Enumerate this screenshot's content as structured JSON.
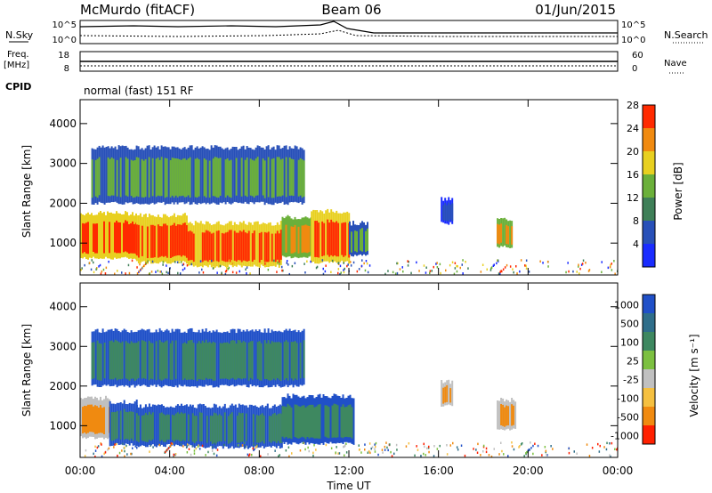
{
  "header": {
    "station": "McMurdo (fitACF)",
    "beam": "Beam 06",
    "date": "01/Jun/2015"
  },
  "top_panels": {
    "nsky_label": "N.Sky",
    "nsky_ticks": [
      "10^5",
      "10^0"
    ],
    "nsearch_label": "N.Search",
    "nsearch_ticks": [
      "10^5",
      "10^0"
    ],
    "freq_label": "Freq.",
    "freq_unit": "[MHz]",
    "freq_ticks": [
      "18",
      "8"
    ],
    "nave_label": "Nave",
    "nave_ticks": [
      "60",
      "0"
    ],
    "cpid_label": "CPID",
    "cpid_text": "normal (fast) 151 RF"
  },
  "chart_data": [
    {
      "type": "heatmap",
      "name": "power",
      "ylabel": "Slant Range [km]",
      "ylim": [
        200,
        4600
      ],
      "yticks": [
        "1000",
        "2000",
        "3000",
        "4000"
      ],
      "xlim": [
        0,
        24
      ],
      "colorbar_label": "Power [dB]",
      "colorbar_ticks": [
        "4",
        "8",
        "12",
        "16",
        "20",
        "24",
        "28"
      ],
      "colorbar_colors": [
        "#1a2cff",
        "#2850b8",
        "#3f7f58",
        "#6bb03a",
        "#e8d020",
        "#f08a10",
        "#ff2a00"
      ],
      "regions": [
        {
          "t0": 0.0,
          "t1": 2.5,
          "r0": 620,
          "r1": 1750,
          "level": 6
        },
        {
          "t0": 2.5,
          "t1": 4.8,
          "r0": 520,
          "r1": 1700,
          "level": 6
        },
        {
          "t0": 4.8,
          "t1": 9.0,
          "r0": 420,
          "r1": 1500,
          "level": 6
        },
        {
          "t0": 9.0,
          "t1": 10.3,
          "r0": 650,
          "r1": 1650,
          "level": 5
        },
        {
          "t0": 10.3,
          "t1": 12.0,
          "r0": 520,
          "r1": 1800,
          "level": 6
        },
        {
          "t0": 12.0,
          "t1": 12.8,
          "r0": 700,
          "r1": 1500,
          "level": 3
        },
        {
          "t0": 16.1,
          "t1": 16.6,
          "r0": 1500,
          "r1": 2100,
          "level": 1
        },
        {
          "t0": 18.6,
          "t1": 19.3,
          "r0": 900,
          "r1": 1600,
          "level": 5
        },
        {
          "t0": 0.5,
          "t1": 10.0,
          "r0": 2000,
          "r1": 3400,
          "level": 3
        }
      ]
    },
    {
      "type": "heatmap",
      "name": "velocity",
      "ylabel": "Slant Range [km]",
      "ylim": [
        200,
        4600
      ],
      "yticks": [
        "1000",
        "2000",
        "3000",
        "4000"
      ],
      "xlim": [
        0,
        24
      ],
      "xlabel": "Time UT",
      "xticks": [
        "00:00",
        "04:00",
        "08:00",
        "12:00",
        "16:00",
        "20:00",
        "00:00"
      ],
      "colorbar_label": "Velocity [m s⁻¹]",
      "colorbar_ticks": [
        "1000",
        "500",
        "100",
        "25",
        "-25",
        "-100",
        "-500",
        "-1000"
      ],
      "colorbar_colors": [
        "#2050c8",
        "#2f6e8a",
        "#3e8860",
        "#7cc040",
        "#c0c0c0",
        "#f5c040",
        "#f08a10",
        "#ff2000"
      ],
      "regions": [
        {
          "t0": 0.0,
          "t1": 1.3,
          "r0": 700,
          "r1": 1700,
          "level": 6
        },
        {
          "t0": 1.3,
          "t1": 2.5,
          "r0": 520,
          "r1": 1600,
          "level": 2
        },
        {
          "t0": 2.5,
          "t1": 5.0,
          "r0": 500,
          "r1": 1500,
          "level": 2
        },
        {
          "t0": 5.0,
          "t1": 9.0,
          "r0": 450,
          "r1": 1500,
          "level": 2
        },
        {
          "t0": 9.0,
          "t1": 12.2,
          "r0": 550,
          "r1": 1750,
          "level": 2
        },
        {
          "t0": 16.1,
          "t1": 16.6,
          "r0": 1500,
          "r1": 2100,
          "level": 6
        },
        {
          "t0": 18.6,
          "t1": 19.4,
          "r0": 900,
          "r1": 1650,
          "level": 6
        },
        {
          "t0": 0.5,
          "t1": 10.0,
          "r0": 2000,
          "r1": 3400,
          "level": 2
        }
      ]
    }
  ]
}
